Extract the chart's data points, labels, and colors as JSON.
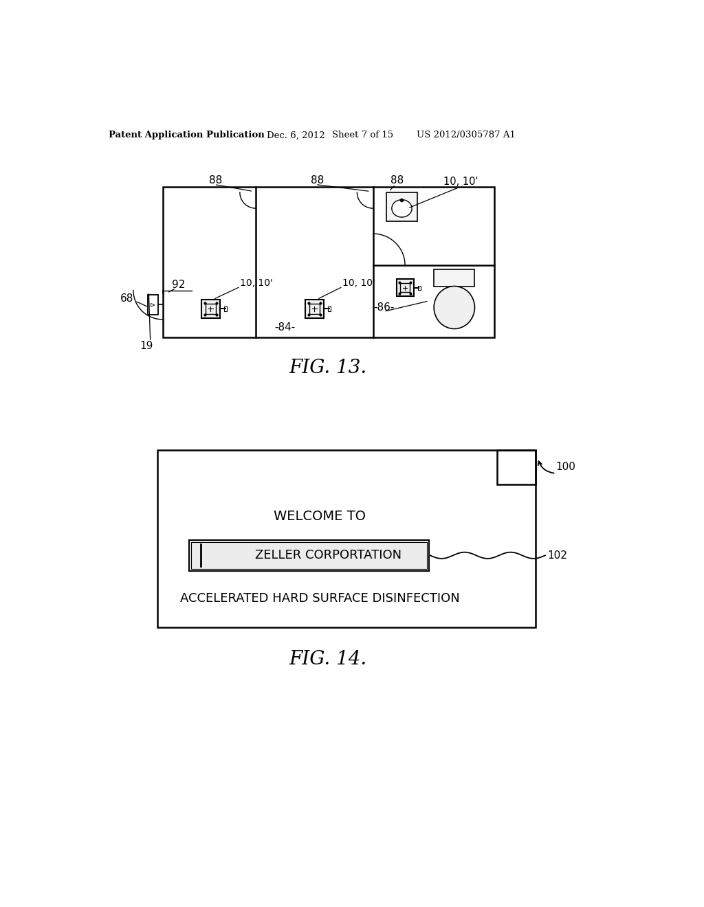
{
  "bg_color": "#ffffff",
  "header_text": "Patent Application Publication",
  "header_date": "Dec. 6, 2012",
  "header_sheet": "Sheet 7 of 15",
  "header_patent": "US 2012/0305787 A1",
  "fig13_caption": "FIG. 13.",
  "fig14_caption": "FIG. 14.",
  "label_88": "88",
  "label_1010": "10, 10'",
  "label_68": "68",
  "label_92": "92",
  "label_84": "-84-",
  "label_86": "-86-",
  "label_19": "19",
  "label_100": "100",
  "label_102": "102",
  "welcome_text": "WELCOME TO",
  "zeller_text": "ZELLER CORPORTATION",
  "accel_text": "ACCELERATED HARD SURFACE DISINFECTION"
}
